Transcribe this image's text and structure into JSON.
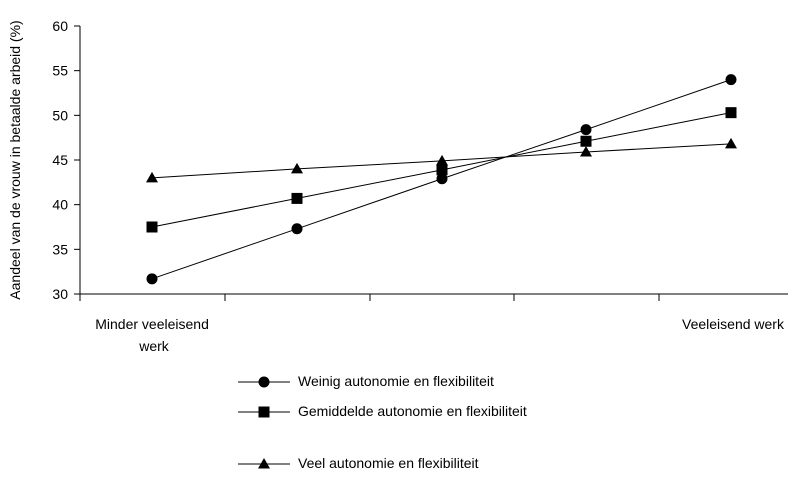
{
  "chart_data": {
    "type": "line",
    "ylabel": "Aandeel van de vrouw in betaalde arbeid (%)",
    "xlabel": "",
    "ylim": [
      30,
      60
    ],
    "yticks": [
      30,
      35,
      40,
      45,
      50,
      55,
      60
    ],
    "x_end_labels": {
      "left": "Minder veeleisend werk",
      "right": "Veeleisend werk"
    },
    "x": [
      1,
      2,
      3,
      4,
      5
    ],
    "legend_position": "bottom",
    "series": [
      {
        "name": "Weinig autonomie en flexibiliteit",
        "marker": "circle",
        "values": [
          31.7,
          37.3,
          42.9,
          48.4,
          54.0
        ]
      },
      {
        "name": "Gemiddelde autonomie en flexibiliteit",
        "marker": "square",
        "values": [
          37.5,
          40.7,
          43.9,
          47.1,
          50.3
        ]
      },
      {
        "name": "Veel autonomie en flexibiliteit",
        "marker": "triangle",
        "values": [
          43.0,
          44.0,
          44.9,
          45.9,
          46.8
        ]
      }
    ]
  }
}
